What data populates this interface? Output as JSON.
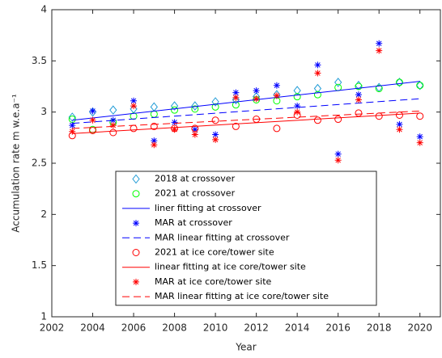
{
  "chart_data": {
    "type": "scatter",
    "xlabel": "Year",
    "ylabel": "Accumulation rate m w.e.a⁻¹",
    "xlim": [
      2002,
      2021
    ],
    "ylim": [
      1,
      4
    ],
    "xticks": [
      2002,
      2004,
      2006,
      2008,
      2010,
      2012,
      2014,
      2016,
      2018,
      2020
    ],
    "yticks": [
      1,
      1.5,
      2,
      2.5,
      3,
      3.5,
      4
    ],
    "series": [
      {
        "name": "2018 at crossover",
        "color": "#1f9bd6",
        "marker": "diamond",
        "x": [
          2003,
          2004,
          2005,
          2006,
          2007,
          2008,
          2009,
          2010,
          2011,
          2012,
          2013,
          2014,
          2015,
          2016,
          2017,
          2018,
          2019,
          2020
        ],
        "values": [
          2.95,
          3.0,
          3.02,
          3.03,
          3.05,
          3.06,
          3.06,
          3.1,
          3.12,
          3.15,
          3.17,
          3.21,
          3.23,
          3.29,
          3.26,
          3.24,
          3.29,
          3.26
        ]
      },
      {
        "name": "2021 at crossover",
        "color": "#00ff00",
        "marker": "circle",
        "x": [
          2003,
          2004,
          2005,
          2006,
          2007,
          2008,
          2009,
          2010,
          2011,
          2012,
          2013,
          2014,
          2015,
          2016,
          2017,
          2018,
          2019,
          2020
        ],
        "values": [
          2.93,
          2.83,
          2.9,
          2.96,
          2.98,
          3.02,
          3.03,
          3.05,
          3.07,
          3.12,
          3.11,
          3.15,
          3.17,
          3.24,
          3.25,
          3.23,
          3.29,
          3.26
        ]
      },
      {
        "name": "liner fitting at crossover",
        "color": "#0000ff",
        "marker": "line",
        "linestyle": "solid",
        "x": [
          2003,
          2020
        ],
        "values": [
          2.92,
          3.3
        ]
      },
      {
        "name": "MAR at crossover",
        "color": "#0000ff",
        "marker": "star",
        "x": [
          2003,
          2004,
          2005,
          2006,
          2007,
          2008,
          2009,
          2010,
          2011,
          2012,
          2013,
          2014,
          2015,
          2016,
          2017,
          2018,
          2019,
          2020
        ],
        "values": [
          2.87,
          3.01,
          2.92,
          3.11,
          2.72,
          2.9,
          2.83,
          2.78,
          3.19,
          3.21,
          3.26,
          3.06,
          3.46,
          2.59,
          3.17,
          3.67,
          2.88,
          2.76
        ]
      },
      {
        "name": "MAR linear fitting at crossover",
        "color": "#0000ff",
        "marker": "line",
        "linestyle": "dashed",
        "x": [
          2003,
          2020
        ],
        "values": [
          2.89,
          3.13
        ]
      },
      {
        "name": "2021 at ice core/tower site",
        "color": "#ff0000",
        "marker": "circle",
        "x": [
          2003,
          2004,
          2005,
          2006,
          2007,
          2008,
          2009,
          2010,
          2011,
          2012,
          2013,
          2014,
          2015,
          2016,
          2017,
          2018,
          2019,
          2020
        ],
        "values": [
          2.77,
          2.82,
          2.8,
          2.84,
          2.86,
          2.84,
          2.84,
          2.92,
          2.86,
          2.93,
          2.84,
          2.97,
          2.92,
          2.93,
          2.99,
          2.96,
          2.97,
          2.96
        ]
      },
      {
        "name": "linear fitting at ice core/tower site",
        "color": "#ff0000",
        "marker": "line",
        "linestyle": "solid",
        "x": [
          2003,
          2020
        ],
        "values": [
          2.79,
          2.99
        ]
      },
      {
        "name": "MAR at ice core/tower site",
        "color": "#ff0000",
        "marker": "star",
        "x": [
          2003,
          2004,
          2005,
          2006,
          2007,
          2008,
          2009,
          2010,
          2011,
          2012,
          2013,
          2014,
          2015,
          2016,
          2017,
          2018,
          2019,
          2020
        ],
        "values": [
          2.81,
          2.92,
          2.87,
          3.06,
          2.68,
          2.83,
          2.78,
          2.73,
          3.14,
          3.13,
          3.16,
          3.0,
          3.38,
          2.53,
          3.12,
          3.6,
          2.83,
          2.7
        ]
      },
      {
        "name": "MAR linear fitting at ice core/tower site",
        "color": "#ff0000",
        "marker": "line",
        "linestyle": "dashed",
        "x": [
          2003,
          2020
        ],
        "values": [
          2.84,
          3.01
        ]
      }
    ]
  }
}
